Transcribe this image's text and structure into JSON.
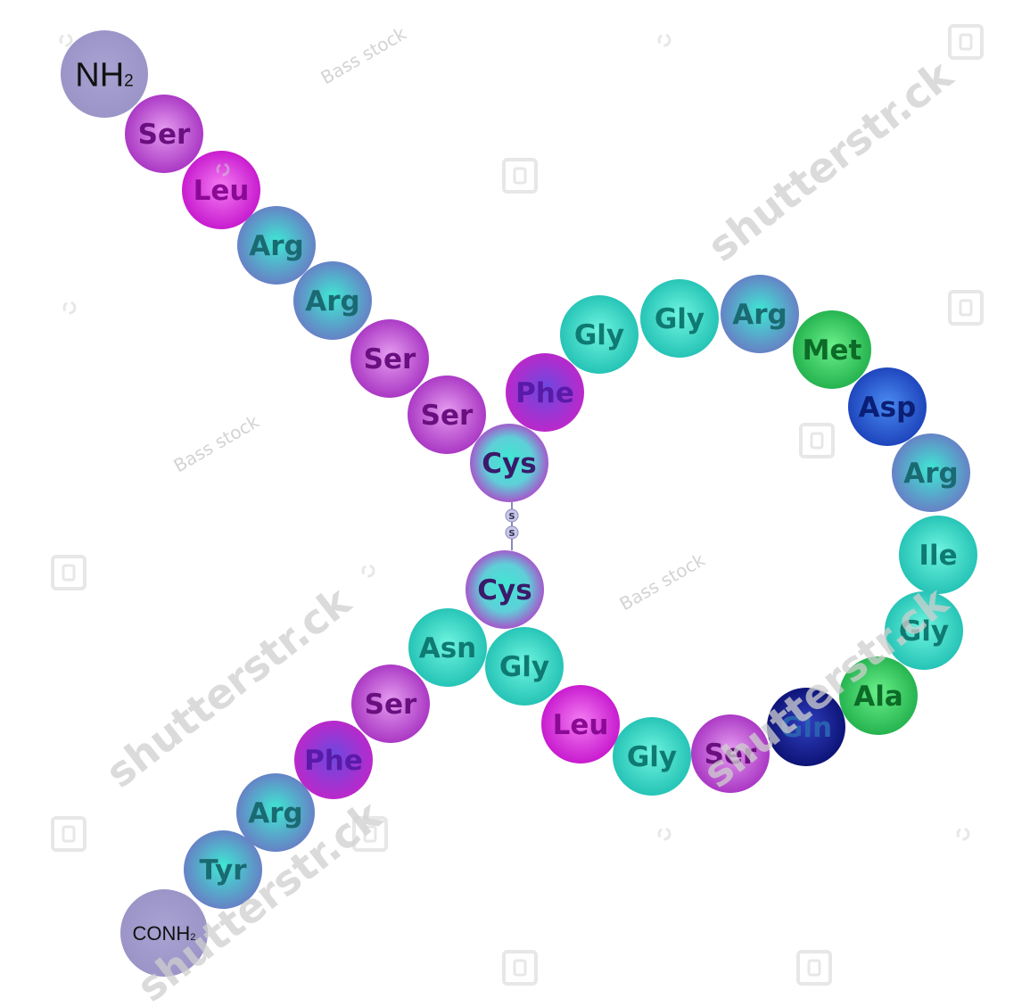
{
  "peptide": {
    "n_terminus": {
      "label": "NH",
      "sub": "2"
    },
    "c_terminus": {
      "label": "CONH",
      "sub": "2"
    },
    "disulfide": {
      "atoms": [
        "S",
        "S"
      ]
    },
    "residues": [
      {
        "id": "r1",
        "label": "Ser",
        "type": "magenta"
      },
      {
        "id": "r2",
        "label": "Leu",
        "type": "pink"
      },
      {
        "id": "r3",
        "label": "Arg",
        "type": "teal-blue"
      },
      {
        "id": "r4",
        "label": "Arg",
        "type": "teal-blue"
      },
      {
        "id": "r5",
        "label": "Ser",
        "type": "magenta"
      },
      {
        "id": "r6",
        "label": "Ser",
        "type": "magenta"
      },
      {
        "id": "r7",
        "label": "Cys",
        "type": "cys"
      },
      {
        "id": "r8",
        "label": "Phe",
        "type": "phe"
      },
      {
        "id": "r9",
        "label": "Gly",
        "type": "cyan"
      },
      {
        "id": "r10",
        "label": "Gly",
        "type": "cyan"
      },
      {
        "id": "r11",
        "label": "Arg",
        "type": "teal-blue"
      },
      {
        "id": "r12",
        "label": "Met",
        "type": "green"
      },
      {
        "id": "r13",
        "label": "Asp",
        "type": "blue"
      },
      {
        "id": "r14",
        "label": "Arg",
        "type": "teal-blue"
      },
      {
        "id": "r15",
        "label": "Ile",
        "type": "cyan"
      },
      {
        "id": "r16",
        "label": "Gly",
        "type": "cyan"
      },
      {
        "id": "r17",
        "label": "Ala",
        "type": "green"
      },
      {
        "id": "r18",
        "label": "Gln",
        "type": "navy"
      },
      {
        "id": "r19",
        "label": "Ser",
        "type": "magenta"
      },
      {
        "id": "r20",
        "label": "Gly",
        "type": "cyan"
      },
      {
        "id": "r21",
        "label": "Leu",
        "type": "pink"
      },
      {
        "id": "r22",
        "label": "Gly",
        "type": "cyan"
      },
      {
        "id": "r23",
        "label": "Cys",
        "type": "cys"
      },
      {
        "id": "r24",
        "label": "Asn",
        "type": "cyan"
      },
      {
        "id": "r25",
        "label": "Ser",
        "type": "magenta"
      },
      {
        "id": "r26",
        "label": "Phe",
        "type": "phe"
      },
      {
        "id": "r27",
        "label": "Arg",
        "type": "teal-blue"
      },
      {
        "id": "r28",
        "label": "Tyr",
        "type": "teal-blue"
      }
    ]
  },
  "palette": {
    "magenta": {
      "light": "#e59cf0",
      "dark": "#a52fc0",
      "text": "#6a0f80"
    },
    "pink": {
      "light": "#f47cf2",
      "dark": "#c412cc",
      "text": "#8a0a95"
    },
    "teal-blue": {
      "light": "#3fe8d3",
      "dark": "#6a78c4",
      "text": "#1a6a72"
    },
    "cyan": {
      "light": "#6ff5e0",
      "dark": "#1fbfb2",
      "text": "#0f7a72"
    },
    "green": {
      "light": "#6af08a",
      "dark": "#1fae4a",
      "text": "#0c6b27"
    },
    "blue": {
      "light": "#4a8af0",
      "dark": "#1a3fb8",
      "text": "#0a1f75"
    },
    "navy": {
      "light": "#3040c0",
      "dark": "#0a0f70",
      "text": "#2a60b0"
    },
    "phe": {
      "light": "#6a4ae0",
      "dark": "#c225c8",
      "text": "#5a1aa8"
    },
    "cys": {
      "light": "#3ee7d2",
      "dark": "#b43cc8",
      "text": "#3a1a6a"
    },
    "terminus": {
      "light": "#a9a3d3",
      "dark": "#9a93c6",
      "text": "#111111"
    }
  },
  "watermarks": {
    "shutterstock": "shutterstr.ck",
    "bass_stock": "Bass stock"
  }
}
